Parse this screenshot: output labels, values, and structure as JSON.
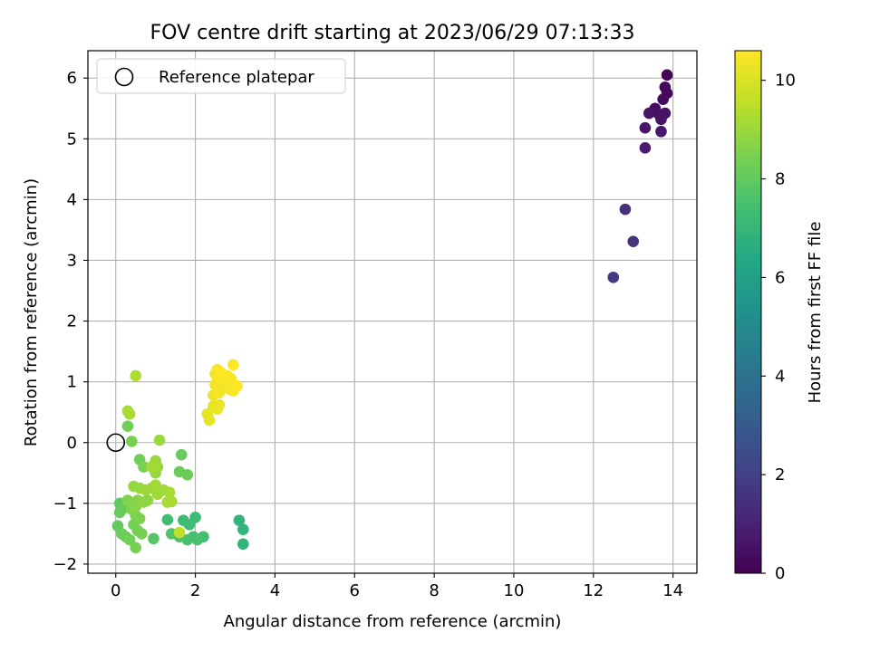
{
  "chart_data": {
    "type": "scatter",
    "title": "FOV centre drift starting at 2023/06/29 07:13:33",
    "xlabel": "Angular distance from reference (arcmin)",
    "ylabel": "Rotation from reference (arcmin)",
    "xlim": [
      -0.7,
      14.6
    ],
    "ylim": [
      -2.15,
      6.45
    ],
    "x_ticks": [
      0,
      2,
      4,
      6,
      8,
      10,
      12,
      14
    ],
    "y_ticks": [
      -2,
      -1,
      0,
      1,
      2,
      3,
      4,
      5,
      6
    ],
    "grid": true,
    "legend": {
      "placement": "top-left",
      "entries": [
        "Reference platepar"
      ]
    },
    "reference_point": {
      "x": 0,
      "y": 0
    },
    "colorbar": {
      "label": "Hours from first FF file",
      "colormap": "viridis",
      "range": [
        0,
        10.6
      ],
      "ticks": [
        0,
        2,
        4,
        6,
        8,
        10
      ]
    },
    "points": [
      {
        "x": 13.85,
        "y": 6.05,
        "h": 0.1
      },
      {
        "x": 13.8,
        "y": 5.85,
        "h": 0.2
      },
      {
        "x": 13.85,
        "y": 5.75,
        "h": 0.25
      },
      {
        "x": 13.75,
        "y": 5.65,
        "h": 0.3
      },
      {
        "x": 13.55,
        "y": 5.5,
        "h": 0.35
      },
      {
        "x": 13.5,
        "y": 5.45,
        "h": 0.4
      },
      {
        "x": 13.65,
        "y": 5.4,
        "h": 0.45
      },
      {
        "x": 13.8,
        "y": 5.42,
        "h": 0.5
      },
      {
        "x": 13.7,
        "y": 5.32,
        "h": 0.55
      },
      {
        "x": 13.4,
        "y": 5.42,
        "h": 0.6
      },
      {
        "x": 13.3,
        "y": 5.18,
        "h": 0.65
      },
      {
        "x": 13.7,
        "y": 5.12,
        "h": 0.7
      },
      {
        "x": 13.3,
        "y": 4.85,
        "h": 0.8
      },
      {
        "x": 12.8,
        "y": 3.84,
        "h": 1.5
      },
      {
        "x": 13.0,
        "y": 3.31,
        "h": 1.6
      },
      {
        "x": 12.5,
        "y": 2.72,
        "h": 1.75
      },
      {
        "x": 3.1,
        "y": -1.28,
        "h": 6.9
      },
      {
        "x": 3.2,
        "y": -1.43,
        "h": 6.9
      },
      {
        "x": 3.2,
        "y": -1.67,
        "h": 6.9
      },
      {
        "x": 2.0,
        "y": -1.23,
        "h": 7.2
      },
      {
        "x": 1.7,
        "y": -1.28,
        "h": 7.2
      },
      {
        "x": 1.3,
        "y": -1.27,
        "h": 7.3
      },
      {
        "x": 1.85,
        "y": -1.35,
        "h": 7.3
      },
      {
        "x": 1.95,
        "y": -1.55,
        "h": 7.4
      },
      {
        "x": 2.2,
        "y": -1.55,
        "h": 7.4
      },
      {
        "x": 1.8,
        "y": -1.6,
        "h": 7.5
      },
      {
        "x": 2.05,
        "y": -1.6,
        "h": 7.5
      },
      {
        "x": 1.6,
        "y": -1.55,
        "h": 7.6
      },
      {
        "x": 1.4,
        "y": -1.5,
        "h": 7.7
      },
      {
        "x": 0.95,
        "y": -1.58,
        "h": 7.8
      },
      {
        "x": 1.65,
        "y": -0.2,
        "h": 8.1
      },
      {
        "x": 1.8,
        "y": -0.53,
        "h": 8.2
      },
      {
        "x": 1.6,
        "y": -0.48,
        "h": 8.2
      },
      {
        "x": 0.3,
        "y": 0.27,
        "h": 8.3
      },
      {
        "x": 0.6,
        "y": -0.28,
        "h": 8.3
      },
      {
        "x": 0.4,
        "y": 0.02,
        "h": 8.4
      },
      {
        "x": 0.7,
        "y": -0.4,
        "h": 8.4
      },
      {
        "x": 0.1,
        "y": -1.0,
        "h": 8.0
      },
      {
        "x": 0.2,
        "y": -1.08,
        "h": 8.1
      },
      {
        "x": 0.1,
        "y": -1.15,
        "h": 8.1
      },
      {
        "x": 0.05,
        "y": -1.37,
        "h": 8.0
      },
      {
        "x": 0.15,
        "y": -1.5,
        "h": 8.2
      },
      {
        "x": 0.25,
        "y": -1.55,
        "h": 8.2
      },
      {
        "x": 0.35,
        "y": -1.6,
        "h": 8.3
      },
      {
        "x": 0.5,
        "y": -1.73,
        "h": 8.4
      },
      {
        "x": 0.55,
        "y": -1.45,
        "h": 8.3
      },
      {
        "x": 0.65,
        "y": -1.5,
        "h": 8.4
      },
      {
        "x": 0.45,
        "y": -1.35,
        "h": 8.4
      },
      {
        "x": 0.5,
        "y": -1.2,
        "h": 8.5
      },
      {
        "x": 0.6,
        "y": -1.25,
        "h": 8.5
      },
      {
        "x": 0.4,
        "y": -1.1,
        "h": 8.6
      },
      {
        "x": 0.3,
        "y": -0.95,
        "h": 8.6
      },
      {
        "x": 0.55,
        "y": -0.95,
        "h": 8.7
      },
      {
        "x": 0.5,
        "y": -1.05,
        "h": 8.7
      },
      {
        "x": 0.7,
        "y": -0.98,
        "h": 8.8
      },
      {
        "x": 0.8,
        "y": -0.95,
        "h": 8.8
      },
      {
        "x": 0.45,
        "y": -0.72,
        "h": 8.9
      },
      {
        "x": 0.6,
        "y": -0.75,
        "h": 8.9
      },
      {
        "x": 0.75,
        "y": -0.78,
        "h": 9.0
      },
      {
        "x": 0.9,
        "y": -0.75,
        "h": 9.0
      },
      {
        "x": 1.0,
        "y": -0.7,
        "h": 9.1
      },
      {
        "x": 1.05,
        "y": -0.85,
        "h": 9.1
      },
      {
        "x": 1.2,
        "y": -0.78,
        "h": 9.1
      },
      {
        "x": 1.35,
        "y": -0.82,
        "h": 9.2
      },
      {
        "x": 1.3,
        "y": -0.98,
        "h": 9.2
      },
      {
        "x": 1.4,
        "y": -0.97,
        "h": 9.2
      },
      {
        "x": 1.0,
        "y": -0.5,
        "h": 8.9
      },
      {
        "x": 1.05,
        "y": -0.4,
        "h": 9.0
      },
      {
        "x": 1.0,
        "y": -0.3,
        "h": 9.0
      },
      {
        "x": 0.9,
        "y": -0.4,
        "h": 9.1
      },
      {
        "x": 1.1,
        "y": 0.04,
        "h": 9.0
      },
      {
        "x": 0.3,
        "y": 0.52,
        "h": 9.2
      },
      {
        "x": 0.35,
        "y": 0.47,
        "h": 9.2
      },
      {
        "x": 0.5,
        "y": 1.1,
        "h": 9.3
      },
      {
        "x": 1.6,
        "y": -1.48,
        "h": 9.6
      },
      {
        "x": 2.3,
        "y": 0.47,
        "h": 10.2
      },
      {
        "x": 2.35,
        "y": 0.37,
        "h": 10.2
      },
      {
        "x": 2.45,
        "y": 0.6,
        "h": 10.2
      },
      {
        "x": 2.55,
        "y": 0.55,
        "h": 10.3
      },
      {
        "x": 2.6,
        "y": 0.62,
        "h": 10.3
      },
      {
        "x": 2.45,
        "y": 0.78,
        "h": 10.3
      },
      {
        "x": 2.6,
        "y": 0.82,
        "h": 10.4
      },
      {
        "x": 2.5,
        "y": 0.95,
        "h": 10.4
      },
      {
        "x": 2.55,
        "y": 1.05,
        "h": 10.4
      },
      {
        "x": 2.5,
        "y": 1.13,
        "h": 10.5
      },
      {
        "x": 2.55,
        "y": 1.2,
        "h": 10.5
      },
      {
        "x": 2.7,
        "y": 1.0,
        "h": 10.5
      },
      {
        "x": 2.8,
        "y": 1.1,
        "h": 10.5
      },
      {
        "x": 2.9,
        "y": 1.05,
        "h": 10.5
      },
      {
        "x": 2.75,
        "y": 0.95,
        "h": 10.5
      },
      {
        "x": 2.85,
        "y": 0.88,
        "h": 10.5
      },
      {
        "x": 2.95,
        "y": 0.85,
        "h": 10.5
      },
      {
        "x": 3.05,
        "y": 0.93,
        "h": 10.6
      },
      {
        "x": 2.95,
        "y": 1.28,
        "h": 10.6
      },
      {
        "x": 2.65,
        "y": 1.15,
        "h": 10.6
      }
    ]
  },
  "colors": {
    "reference_marker_edge": "#000000",
    "grid": "#b0b0b0",
    "axes": "#000000"
  }
}
